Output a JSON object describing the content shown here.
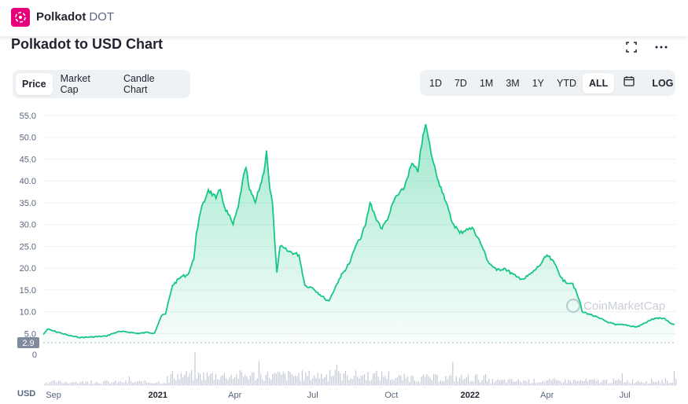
{
  "header": {
    "coin_name": "Polkadot",
    "coin_symbol": "DOT"
  },
  "chart_title": "Polkadot to USD Chart",
  "icons": {
    "logo": "polkadot-logo",
    "fullscreen": "fullscreen-icon",
    "more": "more-dots-icon",
    "calendar": "calendar-icon"
  },
  "tabs": [
    {
      "label": "Price",
      "active": true
    },
    {
      "label": "Market Cap",
      "active": false
    },
    {
      "label": "Candle Chart",
      "active": false
    }
  ],
  "ranges": [
    {
      "label": "1D",
      "active": false
    },
    {
      "label": "7D",
      "active": false
    },
    {
      "label": "1M",
      "active": false
    },
    {
      "label": "3M",
      "active": false
    },
    {
      "label": "1Y",
      "active": false
    },
    {
      "label": "YTD",
      "active": false
    },
    {
      "label": "ALL",
      "active": true
    }
  ],
  "log_label": "LOG",
  "colors": {
    "line": "#16c784",
    "accent": "#e6007a",
    "volume": "#c4c9d6",
    "badge": "#808a9d"
  },
  "chart_data": {
    "type": "area",
    "ylim": [
      2.9,
      55
    ],
    "y_ticks": [
      5.0,
      10.0,
      15.0,
      20.0,
      25.0,
      30.0,
      35.0,
      40.0,
      45.0,
      50.0,
      55.0
    ],
    "y_tick_labels": [
      "5.0",
      "10.0",
      "15.0",
      "20.0",
      "25.0",
      "30.0",
      "35.0",
      "40.0",
      "45.0",
      "50.0",
      "55.0"
    ],
    "grid": true,
    "current_badge": "2.9",
    "volume_zero_label": "0",
    "currency_label": "USD",
    "x_ticks": [
      {
        "date": "2020-09-01",
        "label": "Sep"
      },
      {
        "date": "2021-01-01",
        "label": "2021"
      },
      {
        "date": "2021-04-01",
        "label": "Apr"
      },
      {
        "date": "2021-07-01",
        "label": "Jul"
      },
      {
        "date": "2021-10-01",
        "label": "Oct"
      },
      {
        "date": "2022-01-01",
        "label": "2022"
      },
      {
        "date": "2022-04-01",
        "label": "Apr"
      },
      {
        "date": "2022-07-01",
        "label": "Jul"
      }
    ],
    "x_range": [
      "2020-08-20",
      "2022-08-30"
    ],
    "series": [
      {
        "x": [
          "2020-08-20",
          "2020-08-25",
          "2020-09-01",
          "2020-09-10",
          "2020-09-20",
          "2020-10-01",
          "2020-10-15",
          "2020-11-01",
          "2020-11-15",
          "2020-11-25",
          "2020-12-10",
          "2020-12-20",
          "2020-12-28",
          "2021-01-05",
          "2021-01-10",
          "2021-01-18",
          "2021-01-28",
          "2021-02-05",
          "2021-02-12",
          "2021-02-15",
          "2021-02-20",
          "2021-03-01",
          "2021-03-10",
          "2021-03-15",
          "2021-03-20",
          "2021-03-30",
          "2021-04-05",
          "2021-04-10",
          "2021-04-14",
          "2021-04-18",
          "2021-04-25",
          "2021-05-05",
          "2021-05-08",
          "2021-05-12",
          "2021-05-15",
          "2021-05-18",
          "2021-05-20",
          "2021-05-24",
          "2021-06-01",
          "2021-06-15",
          "2021-06-22",
          "2021-07-01",
          "2021-07-15",
          "2021-07-20",
          "2021-08-01",
          "2021-08-14",
          "2021-08-20",
          "2021-08-25",
          "2021-09-01",
          "2021-09-06",
          "2021-09-12",
          "2021-09-20",
          "2021-09-28",
          "2021-10-05",
          "2021-10-15",
          "2021-10-25",
          "2021-11-01",
          "2021-11-04",
          "2021-11-10",
          "2021-11-18",
          "2021-11-25",
          "2021-12-01",
          "2021-12-10",
          "2021-12-20",
          "2021-12-28",
          "2022-01-05",
          "2022-01-15",
          "2022-01-22",
          "2022-02-01",
          "2022-02-10",
          "2022-02-24",
          "2022-03-05",
          "2022-03-15",
          "2022-03-25",
          "2022-04-01",
          "2022-04-10",
          "2022-04-20",
          "2022-05-01",
          "2022-05-09",
          "2022-05-12",
          "2022-05-20",
          "2022-06-01",
          "2022-06-13",
          "2022-06-20",
          "2022-07-01",
          "2022-07-15",
          "2022-07-25",
          "2022-08-05",
          "2022-08-15",
          "2022-08-22",
          "2022-08-28"
        ],
        "y": [
          4.8,
          6.0,
          5.6,
          5.1,
          4.5,
          4.1,
          4.2,
          4.4,
          5.4,
          5.4,
          5.0,
          5.3,
          5.1,
          9.0,
          9.5,
          16.0,
          18.0,
          18.5,
          22.0,
          28.0,
          33.0,
          38.0,
          36.0,
          38.0,
          34.0,
          30.0,
          34.0,
          40.0,
          43.0,
          38.0,
          35.0,
          42.0,
          47.0,
          38.0,
          35.0,
          25.0,
          19.0,
          25.0,
          24.0,
          23.0,
          16.0,
          15.5,
          13.0,
          12.5,
          17.5,
          21.5,
          25.0,
          26.5,
          30.0,
          35.0,
          32.0,
          29.0,
          32.0,
          36.0,
          38.0,
          44.0,
          42.0,
          47.0,
          53.0,
          45.0,
          40.0,
          37.0,
          31.0,
          28.0,
          29.0,
          29.0,
          25.0,
          21.5,
          19.5,
          20.0,
          18.0,
          17.5,
          19.0,
          21.0,
          23.0,
          21.0,
          17.0,
          16.5,
          12.5,
          10.0,
          9.5,
          8.5,
          7.5,
          7.0,
          7.0,
          6.5,
          7.5,
          8.5,
          8.5,
          7.5,
          7.0
        ]
      }
    ],
    "annotations": [
      "CoinMarketCap"
    ]
  }
}
